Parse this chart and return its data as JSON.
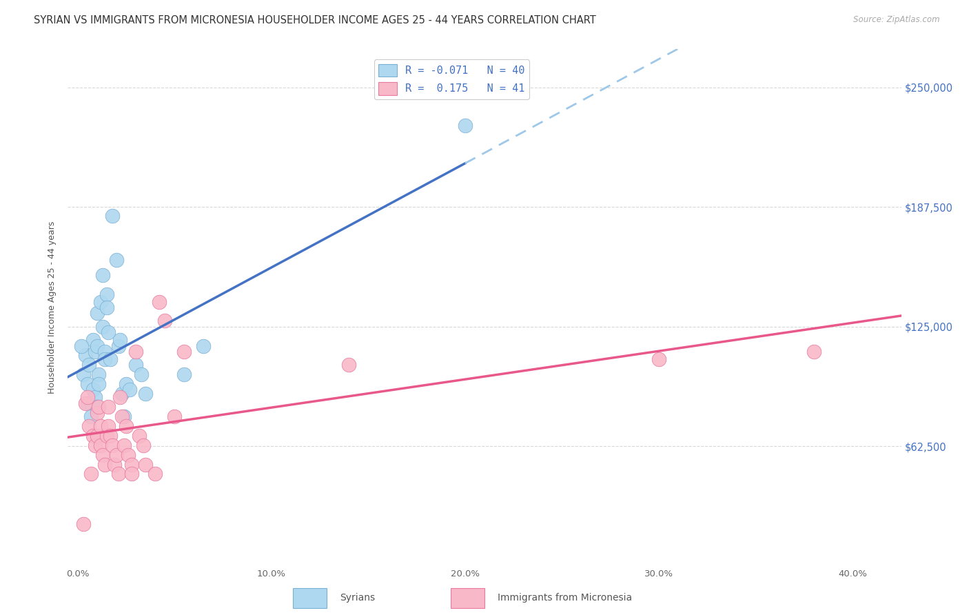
{
  "title": "SYRIAN VS IMMIGRANTS FROM MICRONESIA HOUSEHOLDER INCOME AGES 25 - 44 YEARS CORRELATION CHART",
  "source": "Source: ZipAtlas.com",
  "ylabel": "Householder Income Ages 25 - 44 years",
  "xlabel_ticks": [
    "0.0%",
    "10.0%",
    "20.0%",
    "30.0%",
    "40.0%"
  ],
  "xlabel_vals": [
    0.0,
    0.1,
    0.2,
    0.3,
    0.4
  ],
  "ytick_labels": [
    "$62,500",
    "$125,000",
    "$187,500",
    "$250,000"
  ],
  "ytick_vals": [
    62500,
    125000,
    187500,
    250000
  ],
  "ylim": [
    0,
    270000
  ],
  "xlim": [
    -0.005,
    0.425
  ],
  "legend_label_syrians": "Syrians",
  "legend_label_micronesia": "Immigrants from Micronesia",
  "legend_r1": "R = -0.071",
  "legend_n1": "N = 40",
  "legend_r2": "R =  0.175",
  "legend_n2": "N = 41",
  "blue_scatter_color": "#aed8f0",
  "pink_scatter_color": "#f9b8c8",
  "blue_edge_color": "#7ab0d4",
  "pink_edge_color": "#e87aa0",
  "blue_line_color": "#4472c4",
  "pink_line_color": "#e8588a",
  "blue_dash_color": "#9fc8e8",
  "grid_color": "#d8d8d8",
  "background_color": "#ffffff",
  "syrians_x": [
    0.003,
    0.004,
    0.005,
    0.005,
    0.006,
    0.007,
    0.007,
    0.008,
    0.008,
    0.009,
    0.009,
    0.01,
    0.01,
    0.01,
    0.011,
    0.011,
    0.012,
    0.013,
    0.013,
    0.014,
    0.014,
    0.015,
    0.015,
    0.016,
    0.017,
    0.018,
    0.02,
    0.021,
    0.022,
    0.023,
    0.024,
    0.025,
    0.027,
    0.03,
    0.033,
    0.035,
    0.055,
    0.065,
    0.2,
    0.002
  ],
  "syrians_y": [
    100000,
    110000,
    95000,
    85000,
    105000,
    85000,
    78000,
    92000,
    118000,
    112000,
    88000,
    132000,
    115000,
    83000,
    100000,
    95000,
    138000,
    152000,
    125000,
    112000,
    108000,
    142000,
    135000,
    122000,
    108000,
    183000,
    160000,
    115000,
    118000,
    90000,
    78000,
    95000,
    92000,
    105000,
    100000,
    90000,
    100000,
    115000,
    230000,
    115000
  ],
  "micronesia_x": [
    0.003,
    0.004,
    0.005,
    0.006,
    0.007,
    0.008,
    0.009,
    0.01,
    0.01,
    0.011,
    0.012,
    0.012,
    0.013,
    0.014,
    0.015,
    0.016,
    0.016,
    0.017,
    0.018,
    0.019,
    0.02,
    0.021,
    0.022,
    0.023,
    0.024,
    0.025,
    0.026,
    0.028,
    0.028,
    0.03,
    0.032,
    0.034,
    0.035,
    0.04,
    0.042,
    0.045,
    0.05,
    0.055,
    0.14,
    0.3,
    0.38
  ],
  "micronesia_y": [
    22000,
    85000,
    88000,
    73000,
    48000,
    68000,
    63000,
    80000,
    68000,
    83000,
    73000,
    63000,
    58000,
    53000,
    68000,
    73000,
    83000,
    68000,
    63000,
    53000,
    58000,
    48000,
    88000,
    78000,
    63000,
    73000,
    58000,
    53000,
    48000,
    112000,
    68000,
    63000,
    53000,
    48000,
    138000,
    128000,
    78000,
    112000,
    105000,
    108000,
    112000
  ],
  "title_fontsize": 10.5,
  "source_fontsize": 8.5,
  "axis_label_fontsize": 9,
  "tick_fontsize": 9.5,
  "legend_fontsize": 11
}
